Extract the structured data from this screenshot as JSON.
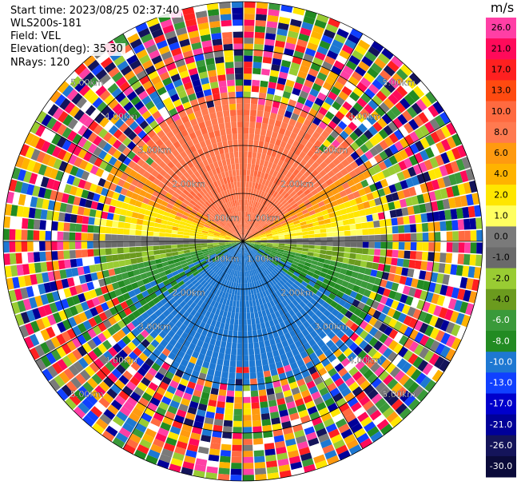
{
  "header": {
    "start_time": "Start time: 2023/08/25 02:37:40",
    "instrument": "WLS200s-181",
    "field": "Field: VEL",
    "elevation": "Elevation(deg): 35.30",
    "nrays": "NRays: 120"
  },
  "colorbar": {
    "unit": "m/s",
    "ticks": [
      "26.0",
      "21.0",
      "17.0",
      "13.0",
      "10.0",
      "8.0",
      "6.0",
      "4.0",
      "2.0",
      "1.0",
      "0.0",
      "-1.0",
      "-2.0",
      "-4.0",
      "-6.0",
      "-8.0",
      "-10.0",
      "-13.0",
      "-17.0",
      "-21.0",
      "-26.0",
      "-30.0"
    ],
    "colors": [
      "#ff3fa5",
      "#ff0a5a",
      "#ff2020",
      "#ff4a10",
      "#ff6a40",
      "#ff7a50",
      "#ff9a10",
      "#ffb300",
      "#ffe600",
      "#ffff60",
      "#7a7a7a",
      "#6a6a6a",
      "#99cc33",
      "#6b9b1e",
      "#3a9a3a",
      "#228b22",
      "#1e78d2",
      "#1040ff",
      "#0000cc",
      "#000099",
      "#14145a",
      "#0a0a3a"
    ]
  },
  "chart_data": {
    "type": "ppi",
    "field": "VEL",
    "unit": "m/s",
    "nrays": 120,
    "elevation_deg": 35.3,
    "range_ring_labels": [
      "1.00km",
      "2.00km",
      "3.00km",
      "4.00km",
      "5.00km"
    ],
    "ring_label_sets": [
      {
        "angle_deg": -135,
        "labels": [
          "1.00km",
          "2.00km",
          "3.00km",
          "4.00km",
          "5.00km"
        ]
      },
      {
        "angle_deg": -45,
        "labels": [
          "1.00km",
          "2.00km",
          "3.00km",
          "4.00km",
          "5.00km"
        ]
      },
      {
        "angle_deg": 135,
        "labels": [
          "1.00km",
          "2.00km",
          "3.00km",
          "4.00km",
          "5.00km"
        ]
      },
      {
        "angle_deg": 45,
        "labels": [
          "1.00km",
          "2.00km",
          "3.00km",
          "4.00km",
          "5.00km"
        ]
      }
    ],
    "max_range_km": 5.0,
    "pattern": {
      "north_half": "positive velocities (orange-red aloft, yellow near horizon)",
      "south_half": "negative velocities (green near horizon, blue aloft)",
      "outer_region": "noisy / mixed values"
    }
  }
}
